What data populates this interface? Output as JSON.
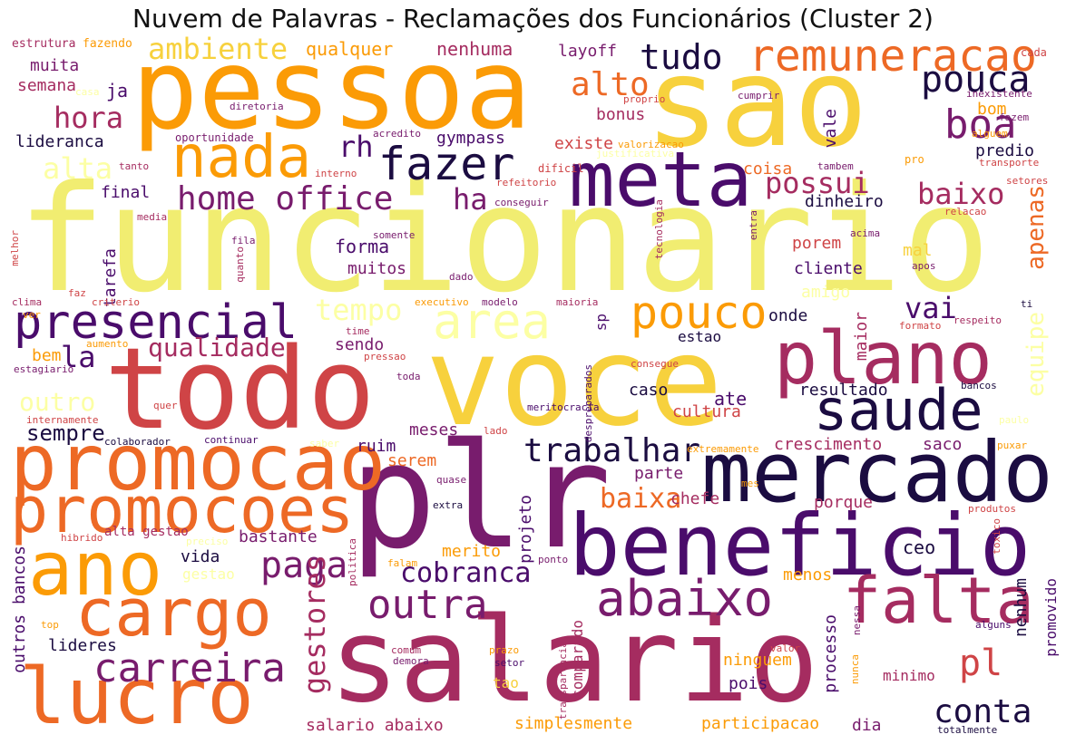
{
  "title": "Nuvem de Palavras - Reclamações dos Funcionários (Cluster 2)",
  "colors": {
    "c0": "#1b0c41",
    "c1": "#4a0c6b",
    "c2": "#781c6d",
    "c3": "#a52c60",
    "c4": "#cf4446",
    "c5": "#ed6925",
    "c6": "#fb9b06",
    "c7": "#f7d13d",
    "c8": "#fcffa4",
    "c9": "#f1ed71"
  },
  "words": [
    {
      "text": "funcionario",
      "color": "c9"
    },
    {
      "text": "pessoa",
      "color": "c6"
    },
    {
      "text": "sao",
      "color": "c7"
    },
    {
      "text": "todo",
      "color": "c4"
    },
    {
      "text": "voce",
      "color": "c7"
    },
    {
      "text": "plr",
      "color": "c2"
    },
    {
      "text": "salario",
      "color": "c3"
    },
    {
      "text": "beneficio",
      "color": "c1"
    },
    {
      "text": "mercado",
      "color": "c0"
    },
    {
      "text": "meta",
      "color": "c1"
    },
    {
      "text": "promocao",
      "color": "c5"
    },
    {
      "text": "promocoes",
      "color": "c5"
    },
    {
      "text": "plano",
      "color": "c3"
    },
    {
      "text": "lucro",
      "color": "c5"
    },
    {
      "text": "ano",
      "color": "c6"
    },
    {
      "text": "cargo",
      "color": "c5"
    },
    {
      "text": "nada",
      "color": "c6"
    },
    {
      "text": "falta",
      "color": "c3"
    },
    {
      "text": "abaixo",
      "color": "c2"
    },
    {
      "text": "saude",
      "color": "c0"
    },
    {
      "text": "presencial",
      "color": "c1"
    },
    {
      "text": "remuneracao",
      "color": "c5"
    },
    {
      "text": "fazer",
      "color": "c0"
    },
    {
      "text": "area",
      "color": "c8"
    },
    {
      "text": "carreira",
      "color": "c2"
    },
    {
      "text": "outra",
      "color": "c2"
    },
    {
      "text": "pouco",
      "color": "c6"
    },
    {
      "text": "home office",
      "color": "c2"
    },
    {
      "text": "boa",
      "color": "c2"
    },
    {
      "text": "pouca",
      "color": "c0"
    },
    {
      "text": "trabalhar",
      "color": "c0"
    },
    {
      "text": "paga",
      "color": "c2"
    },
    {
      "text": "conta",
      "color": "c0"
    },
    {
      "text": "tudo",
      "color": "c0"
    },
    {
      "text": "ambiente",
      "color": "c7"
    },
    {
      "text": "baixo",
      "color": "c3"
    },
    {
      "text": "possui",
      "color": "c3"
    },
    {
      "text": "hora",
      "color": "c3"
    },
    {
      "text": "alto",
      "color": "c5"
    },
    {
      "text": "ha",
      "color": "c2"
    },
    {
      "text": "rh",
      "color": "c1"
    },
    {
      "text": "alta",
      "color": "c8"
    },
    {
      "text": "apenas",
      "color": "c5"
    },
    {
      "text": "equipe",
      "color": "c8"
    },
    {
      "text": "gestores",
      "color": "c3"
    },
    {
      "text": "cobranca",
      "color": "c1"
    },
    {
      "text": "baixa",
      "color": "c5"
    },
    {
      "text": "vai",
      "color": "c1"
    },
    {
      "text": "tempo",
      "color": "c8"
    },
    {
      "text": "qualidade",
      "color": "c3"
    },
    {
      "text": "pl",
      "color": "c4"
    },
    {
      "text": "la",
      "color": "c1"
    },
    {
      "text": "outro",
      "color": "c8"
    },
    {
      "text": "sempre",
      "color": "c0"
    },
    {
      "text": "qualquer",
      "color": "c6"
    },
    {
      "text": "nenhuma",
      "color": "c3"
    },
    {
      "text": "layoff",
      "color": "c2"
    },
    {
      "text": "muita",
      "color": "c2"
    },
    {
      "text": "semana",
      "color": "c3"
    },
    {
      "text": "ja",
      "color": "c1"
    },
    {
      "text": "lideranca",
      "color": "c0"
    },
    {
      "text": "gympass",
      "color": "c1"
    },
    {
      "text": "existe",
      "color": "c4"
    },
    {
      "text": "bonus",
      "color": "c3"
    },
    {
      "text": "vale",
      "color": "c1"
    },
    {
      "text": "bom",
      "color": "c6"
    },
    {
      "text": "predio",
      "color": "c0"
    },
    {
      "text": "final",
      "color": "c1"
    },
    {
      "text": "tarefa",
      "color": "c1"
    },
    {
      "text": "forma",
      "color": "c1"
    },
    {
      "text": "muitos",
      "color": "c2"
    },
    {
      "text": "coisa",
      "color": "c5"
    },
    {
      "text": "dinheiro",
      "color": "c0"
    },
    {
      "text": "porem",
      "color": "c4"
    },
    {
      "text": "cliente",
      "color": "c1"
    },
    {
      "text": "mal",
      "color": "c7"
    },
    {
      "text": "amigo",
      "color": "c8"
    },
    {
      "text": "onde",
      "color": "c0"
    },
    {
      "text": "maior",
      "color": "c3"
    },
    {
      "text": "sendo",
      "color": "c2"
    },
    {
      "text": "estao",
      "color": "c0"
    },
    {
      "text": "bem",
      "color": "c6"
    },
    {
      "text": "caso",
      "color": "c0"
    },
    {
      "text": "ate",
      "color": "c1"
    },
    {
      "text": "resultado",
      "color": "c0"
    },
    {
      "text": "meses",
      "color": "c2"
    },
    {
      "text": "cultura",
      "color": "c4"
    },
    {
      "text": "crescimento",
      "color": "c3"
    },
    {
      "text": "saco",
      "color": "c2"
    },
    {
      "text": "ruim",
      "color": "c1"
    },
    {
      "text": "serem",
      "color": "c5"
    },
    {
      "text": "parte",
      "color": "c2"
    },
    {
      "text": "projeto",
      "color": "c1"
    },
    {
      "text": "chefe",
      "color": "c3"
    },
    {
      "text": "porque",
      "color": "c3"
    },
    {
      "text": "bastante",
      "color": "c2"
    },
    {
      "text": "alta gestao",
      "color": "c3"
    },
    {
      "text": "vida",
      "color": "c0"
    },
    {
      "text": "gestao",
      "color": "c8"
    },
    {
      "text": "merito",
      "color": "c6"
    },
    {
      "text": "ceo",
      "color": "c0"
    },
    {
      "text": "menos",
      "color": "c6"
    },
    {
      "text": "nenhum",
      "color": "c0"
    },
    {
      "text": "promovido",
      "color": "c1"
    },
    {
      "text": "processo",
      "color": "c1"
    },
    {
      "text": "ninguem",
      "color": "c6"
    },
    {
      "text": "pois",
      "color": "c1"
    },
    {
      "text": "minimo",
      "color": "c3"
    },
    {
      "text": "lideres",
      "color": "c0"
    },
    {
      "text": "outros bancos",
      "color": "c1"
    },
    {
      "text": "comparado",
      "color": "c3"
    },
    {
      "text": "tao",
      "color": "c7"
    },
    {
      "text": "salario abaixo",
      "color": "c3"
    },
    {
      "text": "simplesmente",
      "color": "c6"
    },
    {
      "text": "participacao",
      "color": "c6"
    },
    {
      "text": "dia",
      "color": "c2"
    },
    {
      "text": "sp",
      "color": "c1"
    },
    {
      "text": "estrutura",
      "color": "c3"
    },
    {
      "text": "fazendo",
      "color": "c6"
    },
    {
      "text": "cada",
      "color": "c4"
    },
    {
      "text": "casa",
      "color": "c8"
    },
    {
      "text": "diretoria",
      "color": "c2"
    },
    {
      "text": "acredito",
      "color": "c2"
    },
    {
      "text": "proprio",
      "color": "c4"
    },
    {
      "text": "cumprir",
      "color": "c2"
    },
    {
      "text": "inexistente",
      "color": "c2"
    },
    {
      "text": "fazem",
      "color": "c2"
    },
    {
      "text": "oportunidade",
      "color": "c2"
    },
    {
      "text": "valorizacao",
      "color": "c6"
    },
    {
      "text": "alguem",
      "color": "c6"
    },
    {
      "text": "tanto",
      "color": "c3"
    },
    {
      "text": "interno",
      "color": "c4"
    },
    {
      "text": "dificil",
      "color": "c4"
    },
    {
      "text": "justificativa",
      "color": "c8"
    },
    {
      "text": "tambem",
      "color": "c2"
    },
    {
      "text": "pro",
      "color": "c6"
    },
    {
      "text": "transporte",
      "color": "c4"
    },
    {
      "text": "refeitorio",
      "color": "c4"
    },
    {
      "text": "conseguir",
      "color": "c2"
    },
    {
      "text": "setores",
      "color": "c4"
    },
    {
      "text": "media",
      "color": "c3"
    },
    {
      "text": "tecnologia",
      "color": "c3"
    },
    {
      "text": "entra",
      "color": "c2"
    },
    {
      "text": "relacao",
      "color": "c4"
    },
    {
      "text": "melhor",
      "color": "c4"
    },
    {
      "text": "fila",
      "color": "c2"
    },
    {
      "text": "somente",
      "color": "c2"
    },
    {
      "text": "acima",
      "color": "c2"
    },
    {
      "text": "quanto",
      "color": "c3"
    },
    {
      "text": "apos",
      "color": "c2"
    },
    {
      "text": "faz",
      "color": "c4"
    },
    {
      "text": "dado",
      "color": "c2"
    },
    {
      "text": "clima",
      "color": "c3"
    },
    {
      "text": "criterio",
      "color": "c4"
    },
    {
      "text": "executivo",
      "color": "c6"
    },
    {
      "text": "modelo",
      "color": "c2"
    },
    {
      "text": "maioria",
      "color": "c3"
    },
    {
      "text": "ti",
      "color": "c0"
    },
    {
      "text": "ver",
      "color": "c6"
    },
    {
      "text": "formato",
      "color": "c4"
    },
    {
      "text": "respeito",
      "color": "c3"
    },
    {
      "text": "time",
      "color": "c3"
    },
    {
      "text": "aumento",
      "color": "c6"
    },
    {
      "text": "pressao",
      "color": "c4"
    },
    {
      "text": "estagiario",
      "color": "c2"
    },
    {
      "text": "toda",
      "color": "c2"
    },
    {
      "text": "consegue",
      "color": "c4"
    },
    {
      "text": "despreparados",
      "color": "c1"
    },
    {
      "text": "quer",
      "color": "c4"
    },
    {
      "text": "bancos",
      "color": "c0"
    },
    {
      "text": "internamente",
      "color": "c4"
    },
    {
      "text": "lado",
      "color": "c4"
    },
    {
      "text": "meritocracia",
      "color": "c1"
    },
    {
      "text": "paulo",
      "color": "c8"
    },
    {
      "text": "colaborador",
      "color": "c0"
    },
    {
      "text": "continuar",
      "color": "c1"
    },
    {
      "text": "saber",
      "color": "c8"
    },
    {
      "text": "extremamente",
      "color": "c6"
    },
    {
      "text": "puxar",
      "color": "c6"
    },
    {
      "text": "quase",
      "color": "c2"
    },
    {
      "text": "mes",
      "color": "c6"
    },
    {
      "text": "extra",
      "color": "c0"
    },
    {
      "text": "hibrido",
      "color": "c4"
    },
    {
      "text": "produtos",
      "color": "c4"
    },
    {
      "text": "ponto",
      "color": "c2"
    },
    {
      "text": "preciso",
      "color": "c8"
    },
    {
      "text": "politica",
      "color": "c3"
    },
    {
      "text": "falam",
      "color": "c6"
    },
    {
      "text": "toxico",
      "color": "c4"
    },
    {
      "text": "top",
      "color": "c6"
    },
    {
      "text": "nessa",
      "color": "c2"
    },
    {
      "text": "alguns",
      "color": "c1"
    },
    {
      "text": "comum",
      "color": "c3"
    },
    {
      "text": "demora",
      "color": "c2"
    },
    {
      "text": "prazo",
      "color": "c6"
    },
    {
      "text": "setor",
      "color": "c1"
    },
    {
      "text": "transparencia",
      "color": "c3"
    },
    {
      "text": "valor",
      "color": "c4"
    },
    {
      "text": "nunca",
      "color": "c6"
    },
    {
      "text": "totalmente",
      "color": "c0"
    }
  ]
}
